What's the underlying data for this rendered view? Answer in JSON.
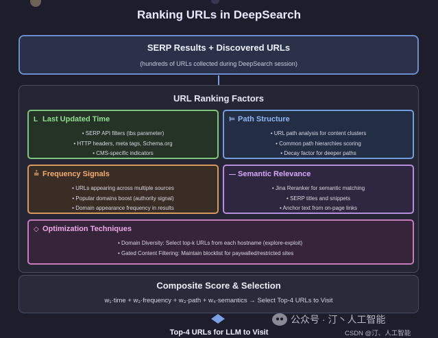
{
  "title": "Ranking URLs in DeepSearch",
  "serp": {
    "title": "SERP Results + Discovered URLs",
    "subtitle": "(hundreds of URLs collected during DeepSearch session)"
  },
  "factors": {
    "title": "URL Ranking Factors",
    "last_updated": {
      "icon": "L",
      "title": "Last Updated Time",
      "items": [
        "SERP API filters (tbs parameter)",
        "HTTP headers, meta tags, Schema.org",
        "CMS-specific indicators"
      ]
    },
    "path_structure": {
      "icon": "⊨",
      "title": "Path Structure",
      "items": [
        "URL path analysis for content clusters",
        "Common path hierarchies scoring",
        "Decay factor for deeper paths"
      ]
    },
    "frequency": {
      "icon": "≟",
      "title": "Frequency Signals",
      "items": [
        "URLs appearing across multiple sources",
        "Popular domains boost (authority signal)",
        "Domain appearance frequency in results"
      ]
    },
    "semantic": {
      "icon": "—",
      "title": "Semantic Relevance",
      "items": [
        "Jina Reranker for semantic matching",
        "SERP titles and snippets",
        "Anchor text from on-page links"
      ]
    },
    "optimization": {
      "icon": "◇",
      "title": "Optimization Techniques",
      "items": [
        "Domain Diversity: Select top-k URLs from each hostname (explore-exploit)",
        "Gated Content Filtering: Maintain blocklist for paywalled/restricted sites"
      ]
    }
  },
  "composite": {
    "title": "Composite Score & Selection",
    "formula": "w₁·time + w₂·frequency + w₃·path + w₄·semantics → Select Top-4 URLs to Visit"
  },
  "final": "Top-4 URLs for LLM to Visit",
  "watermark": "公众号 · 汀丶人工智能",
  "credit": "CSDN @汀、人工智能",
  "colors": {
    "green": "#7fc77f",
    "blue": "#6f9fe0",
    "orange": "#d89a5f",
    "purple": "#b98ee0",
    "pink": "#c97bc0"
  }
}
